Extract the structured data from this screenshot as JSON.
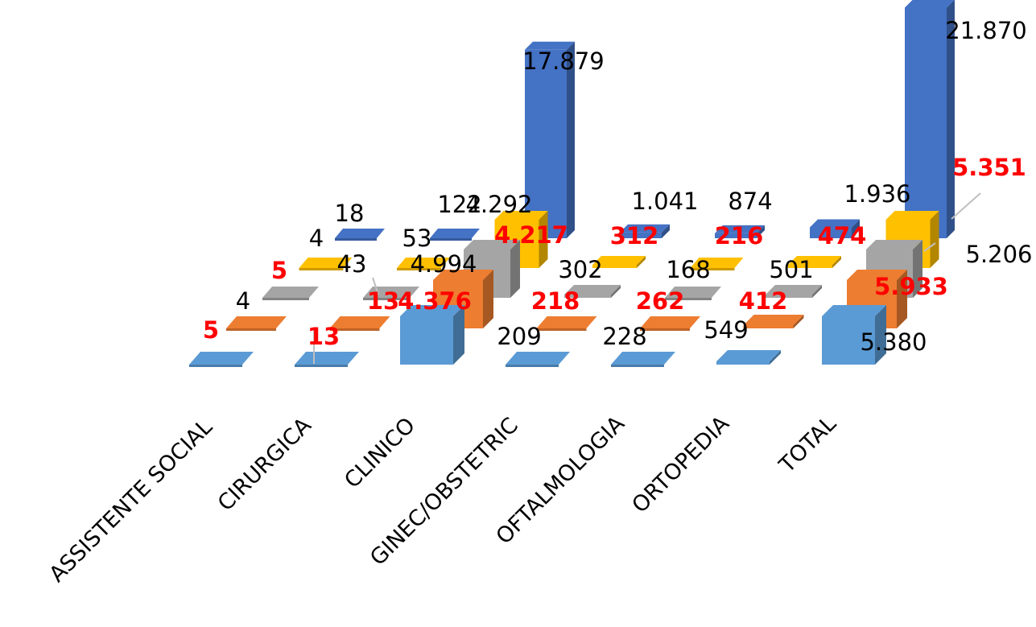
{
  "chart_data": {
    "type": "bar",
    "view": "3d-columns",
    "categories": [
      "ASSISTENTE SOCIAL",
      "CIRURGICA",
      "CLINICO",
      "GINEC/OBSTETRIC",
      "OFTALMOLOGIA",
      "ORTOPEDIA",
      "TOTAL"
    ],
    "series": [
      {
        "values": [
          0,
          0,
          5380,
          209,
          228,
          549,
          5380
        ],
        "labels": [
          "",
          "",
          "",
          "209",
          "228",
          "549",
          "5.380"
        ],
        "color": "#5b9bd5",
        "label_color": "#000000"
      },
      {
        "values": [
          5,
          13,
          4376,
          218,
          262,
          412,
          5933
        ],
        "labels": [
          "5",
          "13",
          "4.376",
          "218",
          "262",
          "412",
          "5.933"
        ],
        "color": "#ed7d31",
        "label_color": "#ff0000"
      },
      {
        "values": [
          4,
          43,
          4994,
          302,
          168,
          501,
          5206
        ],
        "labels": [
          "4",
          "43",
          "4.994",
          "302",
          "168",
          "501",
          "5.206"
        ],
        "color": "#a5a5a5",
        "label_color": "#000000"
      },
      {
        "values": [
          5,
          13,
          4217,
          312,
          216,
          474,
          5351
        ],
        "labels": [
          "5",
          "13",
          "4.217",
          "312",
          "216",
          "474",
          "5.351"
        ],
        "color": "#ffc000",
        "label_color": "#ff0000"
      },
      {
        "values": [
          4,
          53,
          4292,
          1041,
          874,
          1936,
          21870
        ],
        "labels": [
          "4",
          "53",
          "4.292",
          "1.041",
          "874",
          "1.936",
          "21.870"
        ],
        "color": "#4472c4",
        "label_color": "#000000"
      },
      {
        "values": [
          18,
          122,
          17879,
          0,
          0,
          0,
          0
        ],
        "labels": [
          "18",
          "122",
          "17.879",
          "",
          "",
          "",
          ""
        ],
        "color": "#4472c4",
        "label_color": "#000000"
      }
    ],
    "grid": false,
    "legend": "none"
  }
}
